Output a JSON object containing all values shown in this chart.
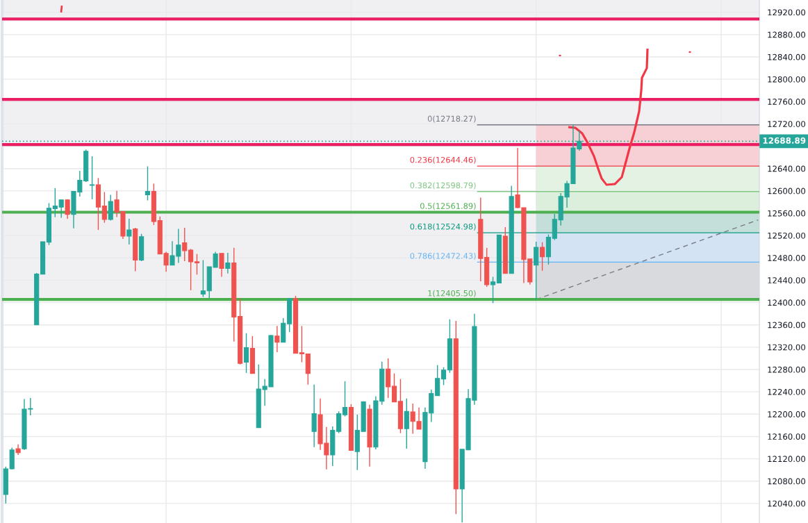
{
  "chart_data": {
    "type": "candlestick",
    "categories": [
      null,
      null,
      null,
      null,
      null,
      null,
      null,
      null,
      null,
      null,
      null,
      null,
      null,
      null,
      null,
      null,
      null,
      null,
      null,
      null,
      null,
      null,
      null,
      null,
      null,
      null,
      null,
      null,
      null,
      null,
      null,
      null,
      null,
      null,
      null,
      null,
      null,
      null,
      null,
      null,
      null,
      null,
      null,
      null,
      null,
      null,
      null,
      null,
      null,
      null,
      null,
      null,
      null,
      null,
      null,
      null,
      null,
      null,
      null,
      null,
      null,
      null,
      null,
      null,
      null,
      null,
      null,
      null,
      null,
      null,
      null,
      null,
      null,
      null,
      null,
      null,
      null,
      null,
      null,
      null,
      null,
      null,
      null,
      null,
      null,
      null,
      null,
      null,
      null,
      null,
      null,
      null,
      null,
      null,
      null,
      null,
      null,
      null,
      null,
      null,
      null,
      null,
      null,
      null,
      null,
      null,
      null,
      null,
      null,
      null,
      null,
      null,
      null,
      null,
      null,
      null,
      null,
      null,
      null,
      null,
      null,
      null,
      null
    ],
    "ohlc": [
      [
        12056,
        12106,
        12040,
        12102
      ],
      [
        12102,
        12140,
        12101,
        12136
      ],
      [
        12138,
        12146,
        12127,
        12131
      ],
      [
        12138,
        12227,
        12136,
        12209
      ],
      [
        12209,
        12229,
        12198,
        12210
      ],
      [
        12360,
        12453,
        12360,
        12451
      ],
      [
        12451,
        12509,
        12451,
        12509
      ],
      [
        12508,
        12578,
        12503,
        12569
      ],
      [
        12568,
        12605,
        12553,
        12573
      ],
      [
        12571,
        12584,
        12552,
        12584
      ],
      [
        12584,
        12585,
        12550,
        12558
      ],
      [
        12558,
        12599,
        12533,
        12599
      ],
      [
        12598,
        12636,
        12590,
        12619
      ],
      [
        12618,
        12674,
        12616,
        12671
      ],
      [
        12610,
        12662,
        12585,
        12611
      ],
      [
        12611,
        12623,
        12530,
        12571
      ],
      [
        12573,
        12598,
        12543,
        12549
      ],
      [
        12549,
        12593,
        12547,
        12581
      ],
      [
        12584,
        12600,
        12553,
        12562
      ],
      [
        12563,
        12563,
        12514,
        12519
      ],
      [
        12519,
        12550,
        12504,
        12530
      ],
      [
        12532,
        12534,
        12456,
        12476
      ],
      [
        12476,
        12523,
        12474,
        12518
      ],
      [
        12593,
        12644,
        12583,
        12599
      ],
      [
        12599,
        12613,
        12539,
        12545
      ],
      [
        12547,
        12554,
        12487,
        12487
      ],
      [
        12488,
        12491,
        12455,
        12467
      ],
      [
        12467,
        12510,
        12467,
        12484
      ],
      [
        12483,
        12532,
        12471,
        12503
      ],
      [
        12507,
        12534,
        12474,
        12493
      ],
      [
        12494,
        12496,
        12422,
        12473
      ],
      [
        12473,
        12487,
        12450,
        12471
      ],
      [
        12415,
        12476,
        12410,
        12421
      ],
      [
        12421,
        12464,
        12408,
        12464
      ],
      [
        12463,
        12491,
        12463,
        12487
      ],
      [
        12488,
        12488,
        12446,
        12461
      ],
      [
        12461,
        12489,
        12452,
        12471
      ],
      [
        12471,
        12498,
        12330,
        12374
      ],
      [
        12375,
        12407,
        12289,
        12291
      ],
      [
        12293,
        12345,
        12274,
        12319
      ],
      [
        12318,
        12340,
        12273,
        12273
      ],
      [
        12176,
        12289,
        12176,
        12245
      ],
      [
        12244,
        12263,
        12215,
        12250
      ],
      [
        12249,
        12342,
        12249,
        12341
      ],
      [
        12340,
        12358,
        12311,
        12329
      ],
      [
        12329,
        12372,
        12329,
        12363
      ],
      [
        12362,
        12408,
        12347,
        12407
      ],
      [
        12407,
        12412,
        12309,
        12309
      ],
      [
        12310,
        12358,
        12293,
        12308
      ],
      [
        12308,
        12308,
        12253,
        12273
      ],
      [
        12169,
        12253,
        12141,
        12201
      ],
      [
        12199,
        12228,
        12136,
        12147
      ],
      [
        12148,
        12177,
        12101,
        12127
      ],
      [
        12127,
        12178,
        12107,
        12171
      ],
      [
        12169,
        12205,
        12166,
        12201
      ],
      [
        12199,
        12259,
        12196,
        12212
      ],
      [
        12212,
        12218,
        12135,
        12135
      ],
      [
        12133,
        12199,
        12100,
        12171
      ],
      [
        12169,
        12223,
        12169,
        12222
      ],
      [
        12209,
        12217,
        12106,
        12141
      ],
      [
        12141,
        12232,
        12137,
        12224
      ],
      [
        12223,
        12294,
        12217,
        12281
      ],
      [
        12281,
        12300,
        12229,
        12249
      ],
      [
        12250,
        12273,
        12222,
        12222
      ],
      [
        12223,
        12263,
        12166,
        12174
      ],
      [
        12174,
        12228,
        12138,
        12205
      ],
      [
        12204,
        12219,
        12165,
        12187
      ],
      [
        12187,
        12212,
        12173,
        12173
      ],
      [
        12115,
        12212,
        12102,
        12203
      ],
      [
        12202,
        12244,
        12186,
        12237
      ],
      [
        12233,
        12288,
        12233,
        12264
      ],
      [
        12263,
        12284,
        12252,
        12279
      ],
      [
        12279,
        12370,
        12274,
        12335
      ],
      [
        12335,
        12367,
        12021,
        12066
      ],
      [
        12066,
        12137,
        12006,
        12137
      ],
      [
        12136,
        12245,
        12136,
        12228
      ],
      [
        12225,
        12380,
        12217,
        12357
      ],
      [
        12549,
        12588,
        12438,
        12479
      ],
      [
        12481,
        12498,
        12428,
        12432
      ],
      [
        12432,
        12446,
        12399,
        12437
      ],
      [
        12435,
        12521,
        12435,
        12521
      ],
      [
        12519,
        12535,
        12452,
        12452
      ],
      [
        12452,
        12609,
        12452,
        12590
      ],
      [
        12593,
        12677,
        12569,
        12570
      ],
      [
        12570,
        12570,
        12435,
        12477
      ],
      [
        12478,
        12478,
        12432,
        12437
      ],
      [
        12467,
        12509,
        12405.5,
        12499
      ],
      [
        12499,
        12508,
        12457,
        12482
      ],
      [
        12482,
        12522,
        12468,
        12517
      ],
      [
        12515,
        12559,
        12512,
        12549
      ],
      [
        12548,
        12596,
        12538,
        12590
      ],
      [
        12589,
        12618,
        12570,
        12613
      ],
      [
        12613,
        12718.27,
        12613,
        12677
      ],
      [
        12675,
        12708,
        12672,
        12688.89
      ],
      null,
      null,
      null,
      null,
      null,
      null,
      null,
      null,
      null,
      null,
      null,
      null,
      null,
      null,
      null,
      null,
      null,
      null,
      null,
      null,
      null,
      null,
      null,
      null,
      null,
      null,
      null,
      null,
      null
    ],
    "colors": [
      "#26a69a",
      "#26a69a",
      "#ef5350",
      "#26a69a",
      "#26a69a",
      "#26a69a",
      "#26a69a",
      "#26a69a",
      "#26a69a",
      "#26a69a",
      "#ef5350",
      "#26a69a",
      "#26a69a",
      "#26a69a",
      "#26a69a",
      "#ef5350",
      "#ef5350",
      "#26a69a",
      "#ef5350",
      "#ef5350",
      "#26a69a",
      "#ef5350",
      "#26a69a",
      "#26a69a",
      "#ef5350",
      "#ef5350",
      "#ef5350",
      "#26a69a",
      "#26a69a",
      "#ef5350",
      "#ef5350",
      "#ef5350",
      "#26a69a",
      "#26a69a",
      "#26a69a",
      "#ef5350",
      "#26a69a",
      "#ef5350",
      "#ef5350",
      "#26a69a",
      "#ef5350",
      "#26a69a",
      "#26a69a",
      "#26a69a",
      "#ef5350",
      "#26a69a",
      "#26a69a",
      "#ef5350",
      "#ef5350",
      "#ef5350",
      "#26a69a",
      "#ef5350",
      "#ef5350",
      "#26a69a",
      "#26a69a",
      "#26a69a",
      "#ef5350",
      "#26a69a",
      "#26a69a",
      "#ef5350",
      "#26a69a",
      "#26a69a",
      "#ef5350",
      "#ef5350",
      "#ef5350",
      "#26a69a",
      "#ef5350",
      "#ef5350",
      "#26a69a",
      "#26a69a",
      "#26a69a",
      "#26a69a",
      "#26a69a",
      "#ef5350",
      "#26a69a",
      "#26a69a",
      "#26a69a",
      "#ef5350",
      "#ef5350",
      "#26a69a",
      "#26a69a",
      "#ef5350",
      "#26a69a",
      "#ef5350",
      "#ef5350",
      "#ef5350",
      "#26a69a",
      "#ef5350",
      "#26a69a",
      "#26a69a",
      "#26a69a",
      "#26a69a",
      "#26a69a",
      "#26a69a",
      null,
      null,
      null,
      null,
      null,
      null,
      null,
      null,
      null,
      null,
      null,
      null,
      null,
      null,
      null,
      null,
      null,
      null,
      null,
      null,
      null,
      null,
      null,
      null,
      null,
      null,
      null,
      null,
      null
    ],
    "series": [
      {
        "type": "line",
        "values": [
          null,
          null,
          null,
          null,
          null,
          null,
          null,
          null,
          null,
          null,
          null,
          null,
          null,
          null,
          null,
          null,
          null,
          null,
          null,
          null,
          null,
          null,
          null,
          null,
          null,
          null,
          null,
          null,
          null,
          null,
          null,
          null,
          null,
          null,
          null,
          null,
          null,
          null,
          null,
          null,
          null,
          null,
          null,
          null,
          null,
          null,
          null,
          null,
          null,
          null,
          null,
          null,
          null,
          null,
          null,
          null,
          null,
          null,
          null,
          null,
          null,
          null,
          null,
          null,
          null,
          null,
          null,
          null,
          null,
          null,
          null,
          null,
          null,
          null,
          null,
          null,
          null,
          null,
          null,
          null,
          null,
          null,
          null,
          null,
          null,
          null,
          12405.5,
          null,
          null,
          null,
          null,
          null,
          null,
          null,
          null,
          null,
          null,
          null,
          null,
          null,
          null,
          null,
          null,
          null,
          null,
          null,
          null,
          null,
          null,
          null,
          null,
          null,
          null,
          null,
          null,
          null,
          null,
          null,
          null,
          null,
          null,
          null,
          12548
        ],
        "color": "#787b86",
        "line_style": "dashed"
      }
    ],
    "ylim": [
      12005,
      12942
    ],
    "yticks": [
      {
        "value": 12040,
        "label": "12040.00"
      },
      {
        "value": 12080,
        "label": "12080.00"
      },
      {
        "value": 12120,
        "label": "12120.00"
      },
      {
        "value": 12160,
        "label": "12160.00"
      },
      {
        "value": 12200,
        "label": "12200.00"
      },
      {
        "value": 12240,
        "label": "12240.00"
      },
      {
        "value": 12280,
        "label": "12280.00"
      },
      {
        "value": 12320,
        "label": "12320.00"
      },
      {
        "value": 12360,
        "label": "12360.00"
      },
      {
        "value": 12400,
        "label": "12400.00"
      },
      {
        "value": 12440,
        "label": "12440.00"
      },
      {
        "value": 12480,
        "label": "12480.00"
      },
      {
        "value": 12520,
        "label": "12520.00"
      },
      {
        "value": 12560,
        "label": "12560.00"
      },
      {
        "value": 12600,
        "label": "12600.00"
      },
      {
        "value": 12640,
        "label": "12640.00"
      },
      {
        "value": 12680,
        "label": null
      },
      {
        "value": 12720,
        "label": "12720.00"
      },
      {
        "value": 12760,
        "label": "12760.00"
      },
      {
        "value": 12800,
        "label": "12800.00"
      },
      {
        "value": 12840,
        "label": "12840.00"
      },
      {
        "value": 12880,
        "label": "12880.00"
      },
      {
        "value": 12920,
        "label": "12920.00"
      }
    ],
    "tick_labels": "y",
    "grid": true,
    "ref_lines": [
      {
        "axis": "y",
        "value": 12908,
        "color": "#e91e63"
      },
      {
        "axis": "y",
        "value": 12764,
        "color": "#e91e63"
      },
      {
        "axis": "y",
        "value": 12683,
        "color": "#e91e63"
      },
      {
        "axis": "y",
        "value": 12688.89,
        "label": "12688.89",
        "color": "#26a69a",
        "line_style": "dotted"
      },
      {
        "axis": "y",
        "value": 12718.27,
        "label": "0(12718.27)",
        "color": "#787b86",
        "line_style": "solid"
      },
      {
        "axis": "y",
        "value": 12644.46,
        "label": "0.236(12644.46)",
        "color": "#f23645",
        "line_style": "solid"
      },
      {
        "axis": "y",
        "value": 12598.79,
        "label": "0.382(12598.79)",
        "color": "#81c784",
        "line_style": "solid"
      },
      {
        "axis": "y",
        "value": 12561.89,
        "label": "0.5(12561.89)",
        "color": "#4caf50",
        "line_style": "solid"
      },
      {
        "axis": "y",
        "value": 12524.98,
        "label": "0.618(12524.98)",
        "color": "#089981",
        "line_style": "solid"
      },
      {
        "axis": "y",
        "value": 12472.43,
        "label": "0.786(12472.43)",
        "color": "#64b5f6",
        "line_style": "solid"
      },
      {
        "axis": "y",
        "value": 12405.5,
        "label": "1(12405.50)",
        "color": "#4caf50",
        "line_style": "solid"
      }
    ],
    "bands": [
      {
        "axis": "y",
        "from": 12908,
        "to": 12942,
        "color": "#f0f0f3"
      },
      {
        "axis": "y",
        "from": 12683,
        "to": 12764,
        "color": "#f0f0f3"
      },
      {
        "axis": "y",
        "from": 12405.5,
        "to": 12561.89,
        "color": "#f0f0f3"
      },
      {
        "axis": "y",
        "from": 12644.46,
        "to": 12718.27,
        "color": "#f6d0d4"
      },
      {
        "axis": "y",
        "from": 12598.79,
        "to": 12644.46,
        "color": "#e3f2e3"
      },
      {
        "axis": "y",
        "from": 12561.89,
        "to": 12598.79,
        "color": "#dcefdc"
      },
      {
        "axis": "y",
        "from": 12524.98,
        "to": 12561.89,
        "color": "#c4dfda"
      },
      {
        "axis": "y",
        "from": 12472.43,
        "to": 12524.98,
        "color": "#d3e3f3"
      },
      {
        "axis": "y",
        "from": 12405.5,
        "to": 12472.43,
        "color": "#d9dade"
      }
    ]
  }
}
